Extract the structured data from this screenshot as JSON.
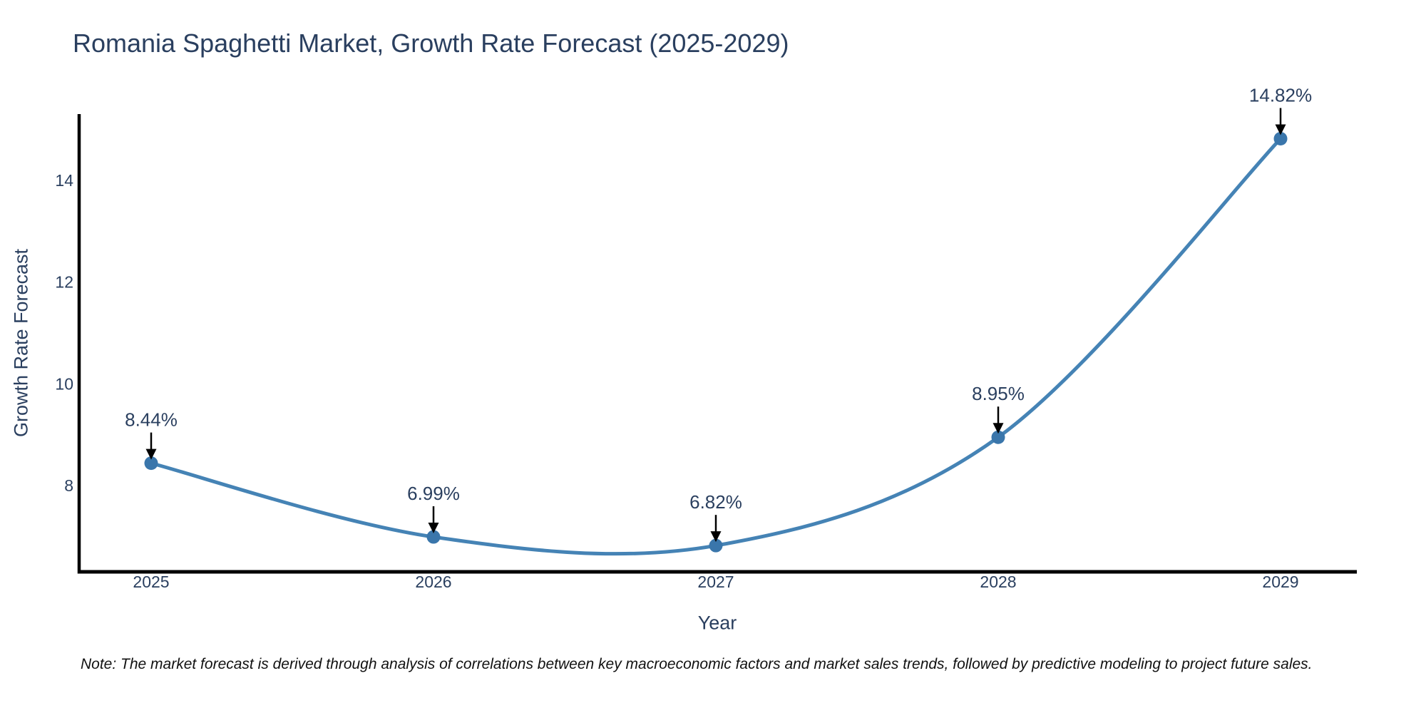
{
  "title": "Romania Spaghetti Market, Growth Rate Forecast (2025-2029)",
  "note": "Note: The market forecast is derived through analysis of correlations between key macroeconomic factors and market sales trends, followed by predictive modeling to project future sales.",
  "axes": {
    "x_label": "Year",
    "y_label": "Growth Rate Forecast",
    "x_tick_labels": [
      "2025",
      "2026",
      "2027",
      "2028",
      "2029"
    ],
    "y_tick_labels": [
      "8",
      "10",
      "12",
      "14"
    ],
    "y_tick_values": [
      8,
      10,
      12,
      14
    ]
  },
  "chart_data": {
    "type": "line",
    "title": "Romania Spaghetti Market, Growth Rate Forecast (2025-2029)",
    "x": [
      2025,
      2026,
      2027,
      2028,
      2029
    ],
    "values": [
      8.44,
      6.99,
      6.82,
      8.95,
      14.82
    ],
    "point_labels": [
      "8.44%",
      "6.99%",
      "6.82%",
      "8.95%",
      "14.82%"
    ],
    "xlabel": "Year",
    "ylabel": "Growth Rate Forecast",
    "xlim": [
      2024.75,
      2029.27
    ],
    "ylim": [
      6.3,
      15.3
    ],
    "line_shape": "spline",
    "grid": false,
    "legend": false,
    "annotations_have_arrows": true,
    "colors": {
      "line": "#4583b5",
      "marker": "#3a76ab",
      "axis": "#000000",
      "text": "#2a3f5f",
      "arrow": "#000000"
    }
  }
}
